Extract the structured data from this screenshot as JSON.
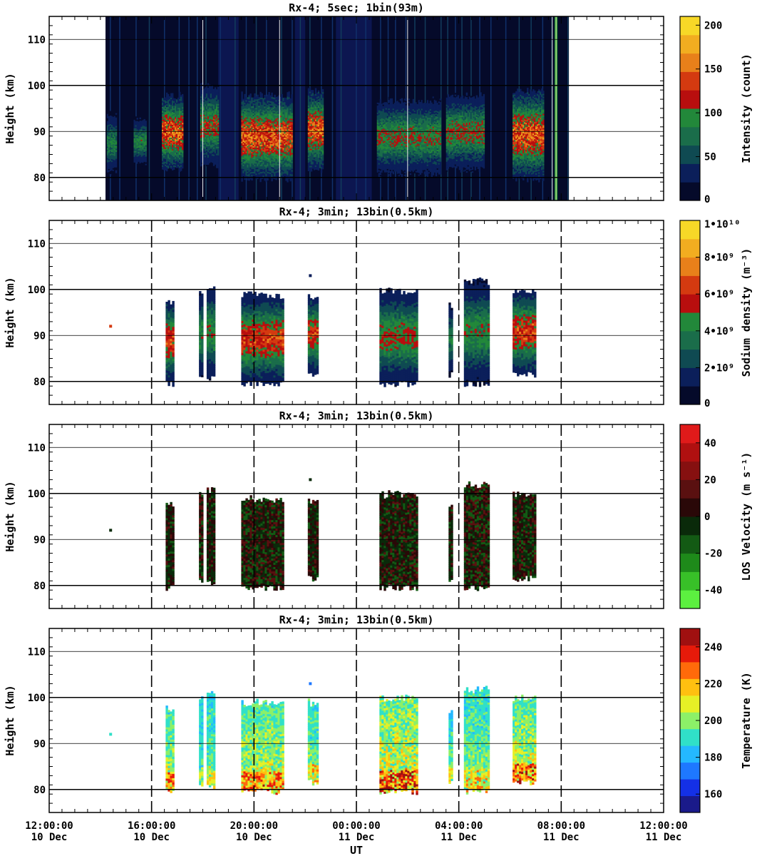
{
  "figure": {
    "xlabel": "UT"
  },
  "colormaps": {
    "intensity": [
      "#050a2a",
      "#0b1f5a",
      "#0f4a52",
      "#1a6d4a",
      "#22883a",
      "#b80e0e",
      "#d43a10",
      "#e8801a",
      "#f2ad20",
      "#f7d827"
    ],
    "density": [
      "#050a2a",
      "#0b1f5a",
      "#0f4a52",
      "#1a6d4a",
      "#22883a",
      "#b80e0e",
      "#d43a10",
      "#e8801a",
      "#f2ad20",
      "#f7d827"
    ],
    "velocity": [
      "#5cf040",
      "#38c028",
      "#1e8a1a",
      "#135a14",
      "#0a2a0a",
      "#2a0808",
      "#5a1010",
      "#861010",
      "#b01010",
      "#e01a1a"
    ],
    "temperature": [
      "#1a1a8a",
      "#1430e6",
      "#1e78ff",
      "#24b8ff",
      "#30e0c8",
      "#8cf068",
      "#e6f026",
      "#ffc010",
      "#ff6a0a",
      "#e61a0a",
      "#a01010"
    ]
  },
  "x_axis": {
    "range_hours": [
      12,
      36
    ],
    "ticks": [
      {
        "hour": 12,
        "time": "12:00:00",
        "date": "10 Dec"
      },
      {
        "hour": 16,
        "time": "16:00:00",
        "date": "10 Dec"
      },
      {
        "hour": 20,
        "time": "20:00:00",
        "date": "10 Dec"
      },
      {
        "hour": 24,
        "time": "00:00:00",
        "date": "11 Dec"
      },
      {
        "hour": 28,
        "time": "04:00:00",
        "date": "11 Dec"
      },
      {
        "hour": 32,
        "time": "08:00:00",
        "date": "11 Dec"
      },
      {
        "hour": 36,
        "time": "12:00:00",
        "date": "11 Dec"
      }
    ]
  },
  "chart_data": [
    {
      "type": "heatmap",
      "title": "Rx-4;  5sec; 1bin(93m)",
      "ylabel": "Height (km)",
      "ylim": [
        75,
        115
      ],
      "yticks": [
        {
          "v": 80,
          "label": "80"
        },
        {
          "v": 90,
          "label": "90"
        },
        {
          "v": 100,
          "label": "100"
        },
        {
          "v": 110,
          "label": "110"
        }
      ],
      "colorbar": {
        "label": "Intensity (count)",
        "range": [
          0,
          210
        ],
        "cmap": "intensity",
        "ticks": [
          {
            "v": 0,
            "label": "0"
          },
          {
            "v": 50,
            "label": "50"
          },
          {
            "v": 100,
            "label": "100"
          },
          {
            "v": 150,
            "label": "150"
          },
          {
            "v": 200,
            "label": "200"
          }
        ]
      },
      "coverage_hours": [
        14.2,
        32.3
      ],
      "background_value": 8,
      "blobs": [
        {
          "start": 14.25,
          "end": 14.6,
          "bottom": 81,
          "top": 94,
          "peak": 85
        },
        {
          "start": 15.3,
          "end": 15.75,
          "bottom": 83,
          "top": 93,
          "peak": 90
        },
        {
          "start": 16.4,
          "end": 17.2,
          "bottom": 82,
          "top": 98,
          "peak": 150
        },
        {
          "start": 17.9,
          "end": 18.6,
          "bottom": 83,
          "top": 100,
          "peak": 115
        },
        {
          "start": 19.5,
          "end": 21.5,
          "bottom": 80,
          "top": 98,
          "peak": 150
        },
        {
          "start": 22.1,
          "end": 22.7,
          "bottom": 82,
          "top": 99,
          "peak": 150
        },
        {
          "start": 24.8,
          "end": 27.3,
          "bottom": 81,
          "top": 97,
          "peak": 105
        },
        {
          "start": 27.5,
          "end": 29.0,
          "bottom": 82,
          "top": 98,
          "peak": 110
        },
        {
          "start": 30.1,
          "end": 31.3,
          "bottom": 80,
          "top": 99,
          "peak": 150
        }
      ],
      "dark_gap_hours": [
        [
          18.6,
          19.4
        ],
        [
          21.6,
          22.0
        ],
        [
          23.2,
          24.6
        ]
      ],
      "vertical_lines": [
        18.0,
        21.0,
        26.0,
        31.65
      ],
      "green_line_hour": 31.8,
      "grid_style": "solid"
    },
    {
      "type": "heatmap",
      "title": "Rx-4; 3min; 13bin(0.5km)",
      "ylabel": "Height (km)",
      "ylim": [
        75,
        115
      ],
      "yticks": [
        {
          "v": 80,
          "label": "80"
        },
        {
          "v": 90,
          "label": "90"
        },
        {
          "v": 100,
          "label": "100"
        },
        {
          "v": 110,
          "label": "110"
        }
      ],
      "colorbar": {
        "label": "Sodium density (m⁻³)",
        "range": [
          0,
          10
        ],
        "cmap": "density",
        "ticks": [
          {
            "v": 0,
            "label": "0"
          },
          {
            "v": 2,
            "label": "2•10⁹"
          },
          {
            "v": 4,
            "label": "4•10⁹"
          },
          {
            "v": 6,
            "label": "6•10⁹"
          },
          {
            "v": 8,
            "label": "8•10⁹"
          },
          {
            "v": 10,
            "label": "1•10¹⁰"
          }
        ]
      },
      "blobs": [
        {
          "start": 16.55,
          "end": 16.85,
          "bottom": 80,
          "top": 98,
          "peak": 6.2
        },
        {
          "start": 17.85,
          "end": 17.95,
          "bottom": 81,
          "top": 100,
          "peak": 4.5
        },
        {
          "start": 18.15,
          "end": 18.45,
          "bottom": 81,
          "top": 101,
          "peak": 4.8
        },
        {
          "start": 19.5,
          "end": 21.1,
          "bottom": 80,
          "top": 99,
          "peak": 6.4
        },
        {
          "start": 22.1,
          "end": 22.45,
          "bottom": 82,
          "top": 99,
          "peak": 6.2
        },
        {
          "start": 24.9,
          "end": 26.4,
          "bottom": 80,
          "top": 100,
          "peak": 5.2
        },
        {
          "start": 27.6,
          "end": 27.7,
          "bottom": 82,
          "top": 97,
          "peak": 4.0
        },
        {
          "start": 28.2,
          "end": 29.2,
          "bottom": 80,
          "top": 102,
          "peak": 4.6
        },
        {
          "start": 30.1,
          "end": 31.0,
          "bottom": 82,
          "top": 100,
          "peak": 6.5
        }
      ],
      "dots": [
        {
          "hour": 14.4,
          "height": 92,
          "value": 6.2
        },
        {
          "hour": 22.2,
          "height": 103,
          "value": 1.5
        }
      ],
      "grid_style": "dashed"
    },
    {
      "type": "heatmap",
      "title": "Rx-4; 3min; 13bin(0.5km)",
      "ylabel": "Height (km)",
      "ylim": [
        75,
        115
      ],
      "yticks": [
        {
          "v": 80,
          "label": "80"
        },
        {
          "v": 90,
          "label": "90"
        },
        {
          "v": 100,
          "label": "100"
        },
        {
          "v": 110,
          "label": "110"
        }
      ],
      "colorbar": {
        "label": "LOS Velocity (m s⁻¹)",
        "range": [
          -50,
          50
        ],
        "cmap": "velocity",
        "ticks": [
          {
            "v": -40,
            "label": "-40"
          },
          {
            "v": -20,
            "label": "-20"
          },
          {
            "v": 0,
            "label": "0"
          },
          {
            "v": 20,
            "label": "20"
          },
          {
            "v": 40,
            "label": "40"
          }
        ]
      },
      "blobs": [
        {
          "start": 16.55,
          "end": 16.85,
          "bottom": 80,
          "top": 98,
          "peak": 12
        },
        {
          "start": 17.85,
          "end": 17.95,
          "bottom": 81,
          "top": 100,
          "peak": 14
        },
        {
          "start": 18.15,
          "end": 18.45,
          "bottom": 81,
          "top": 101,
          "peak": 12
        },
        {
          "start": 19.5,
          "end": 21.1,
          "bottom": 80,
          "top": 99,
          "peak": 16
        },
        {
          "start": 22.1,
          "end": 22.45,
          "bottom": 82,
          "top": 99,
          "peak": 12
        },
        {
          "start": 24.9,
          "end": 26.4,
          "bottom": 80,
          "top": 100,
          "peak": 14
        },
        {
          "start": 27.6,
          "end": 27.7,
          "bottom": 82,
          "top": 97,
          "peak": 12
        },
        {
          "start": 28.2,
          "end": 29.2,
          "bottom": 80,
          "top": 102,
          "peak": 16
        },
        {
          "start": 30.1,
          "end": 31.0,
          "bottom": 82,
          "top": 100,
          "peak": 14
        }
      ],
      "dots": [
        {
          "hour": 14.4,
          "height": 92,
          "value": -4
        },
        {
          "hour": 22.2,
          "height": 103,
          "value": -10
        }
      ],
      "grid_style": "dashed"
    },
    {
      "type": "heatmap",
      "title": "Rx-4; 3min; 13bin(0.5km)",
      "ylabel": "Height (km)",
      "ylim": [
        75,
        115
      ],
      "yticks": [
        {
          "v": 80,
          "label": "80"
        },
        {
          "v": 90,
          "label": "90"
        },
        {
          "v": 100,
          "label": "100"
        },
        {
          "v": 110,
          "label": "110"
        }
      ],
      "colorbar": {
        "label": "Temperature (K)",
        "range": [
          150,
          250
        ],
        "cmap": "temperature",
        "ticks": [
          {
            "v": 160,
            "label": "160"
          },
          {
            "v": 180,
            "label": "180"
          },
          {
            "v": 200,
            "label": "200"
          },
          {
            "v": 220,
            "label": "220"
          },
          {
            "v": 240,
            "label": "240"
          }
        ]
      },
      "blobs": [
        {
          "start": 16.55,
          "end": 16.85,
          "bottom": 80,
          "top": 98,
          "peak": 225
        },
        {
          "start": 17.85,
          "end": 17.95,
          "bottom": 81,
          "top": 100,
          "peak": 205
        },
        {
          "start": 18.15,
          "end": 18.45,
          "bottom": 81,
          "top": 101,
          "peak": 210
        },
        {
          "start": 19.5,
          "end": 21.1,
          "bottom": 80,
          "top": 99,
          "peak": 225
        },
        {
          "start": 22.1,
          "end": 22.45,
          "bottom": 82,
          "top": 99,
          "peak": 215
        },
        {
          "start": 24.9,
          "end": 26.4,
          "bottom": 80,
          "top": 100,
          "peak": 235
        },
        {
          "start": 27.6,
          "end": 27.7,
          "bottom": 82,
          "top": 97,
          "peak": 210
        },
        {
          "start": 28.2,
          "end": 29.2,
          "bottom": 80,
          "top": 102,
          "peak": 215
        },
        {
          "start": 30.1,
          "end": 31.0,
          "bottom": 82,
          "top": 100,
          "peak": 230
        }
      ],
      "dots": [
        {
          "hour": 14.4,
          "height": 92,
          "value": 190
        },
        {
          "hour": 22.2,
          "height": 103,
          "value": 175
        }
      ],
      "grid_style": "dashed"
    }
  ]
}
